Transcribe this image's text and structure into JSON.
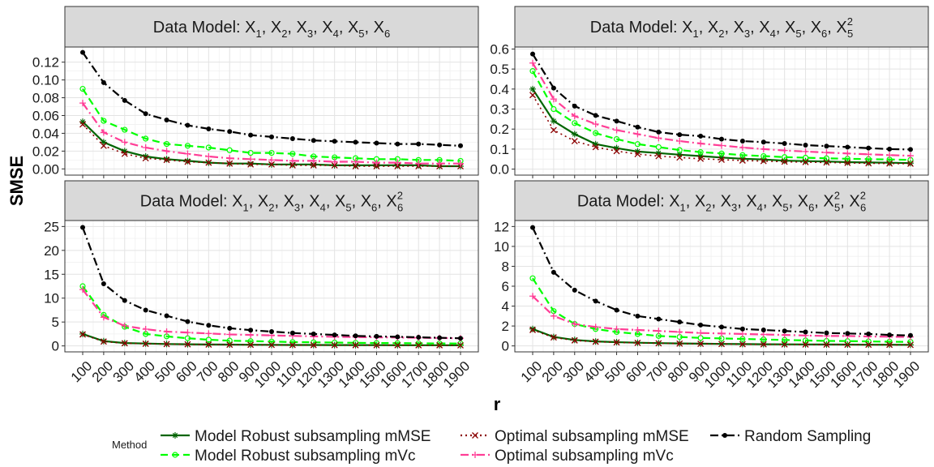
{
  "chart_data": {
    "type": "line",
    "xlabel": "r",
    "ylabel": "SMSE",
    "legend": {
      "title": "Method",
      "placement": "bottom",
      "entries": [
        {
          "name": "Model Robust subsampling mMSE",
          "color": "#006400",
          "line": "solid",
          "marker": "asterisk"
        },
        {
          "name": "Model Robust subsampling mVc",
          "color": "#00ff00",
          "line": "dashed",
          "marker": "open-circle"
        },
        {
          "name": "Optimal subsampling mMSE",
          "color": "#8b0000",
          "line": "dotted",
          "marker": "cross"
        },
        {
          "name": "Optimal subsampling mVc",
          "color": "#ff3e96",
          "line": "dashdot",
          "marker": "plus"
        },
        {
          "name": "Random Sampling",
          "color": "#000000",
          "line": "dashdot",
          "marker": "dot"
        }
      ]
    },
    "x": [
      100,
      200,
      300,
      400,
      500,
      600,
      700,
      800,
      900,
      1000,
      1100,
      1200,
      1300,
      1400,
      1500,
      1600,
      1700,
      1800,
      1900
    ],
    "grid": true,
    "panels": [
      {
        "title": {
          "prefix": "Data Model: ",
          "terms": [
            {
              "b": "X",
              "s": "1"
            },
            {
              "b": "X",
              "s": "2"
            },
            {
              "b": "X",
              "s": "3"
            },
            {
              "b": "X",
              "s": "4"
            },
            {
              "b": "X",
              "s": "5"
            },
            {
              "b": "X",
              "s": "6"
            }
          ]
        },
        "ylim": [
          -0.007,
          0.137
        ],
        "yticks": [
          0.0,
          0.02,
          0.04,
          0.06,
          0.08,
          0.1,
          0.12
        ],
        "ytick_labels": [
          "0.00",
          "0.02",
          "0.04",
          "0.06",
          "0.08",
          "0.10",
          "0.12"
        ],
        "series": [
          {
            "name": "Model Robust subsampling mMSE",
            "values": [
              0.053,
              0.03,
              0.02,
              0.014,
              0.011,
              0.009,
              0.007,
              0.006,
              0.006,
              0.005,
              0.005,
              0.005,
              0.004,
              0.004,
              0.004,
              0.004,
              0.004,
              0.003,
              0.003
            ]
          },
          {
            "name": "Model Robust subsampling mVc",
            "values": [
              0.09,
              0.054,
              0.044,
              0.034,
              0.028,
              0.026,
              0.024,
              0.021,
              0.018,
              0.018,
              0.017,
              0.014,
              0.013,
              0.012,
              0.011,
              0.011,
              0.01,
              0.01,
              0.009
            ]
          },
          {
            "name": "Optimal subsampling mMSE",
            "values": [
              0.05,
              0.026,
              0.017,
              0.012,
              0.01,
              0.008,
              0.007,
              0.006,
              0.005,
              0.005,
              0.004,
              0.004,
              0.004,
              0.003,
              0.003,
              0.003,
              0.003,
              0.003,
              0.003
            ]
          },
          {
            "name": "Optimal subsampling mVc",
            "values": [
              0.074,
              0.041,
              0.03,
              0.024,
              0.02,
              0.017,
              0.014,
              0.012,
              0.011,
              0.01,
              0.009,
              0.009,
              0.008,
              0.008,
              0.007,
              0.007,
              0.006,
              0.006,
              0.006
            ]
          },
          {
            "name": "Random Sampling",
            "values": [
              0.131,
              0.097,
              0.077,
              0.062,
              0.055,
              0.049,
              0.045,
              0.042,
              0.038,
              0.036,
              0.034,
              0.032,
              0.031,
              0.03,
              0.029,
              0.028,
              0.028,
              0.027,
              0.026
            ]
          }
        ]
      },
      {
        "title": {
          "prefix": "Data Model: ",
          "terms": [
            {
              "b": "X",
              "s": "1"
            },
            {
              "b": "X",
              "s": "2"
            },
            {
              "b": "X",
              "s": "3"
            },
            {
              "b": "X",
              "s": "4"
            },
            {
              "b": "X",
              "s": "5"
            },
            {
              "b": "X",
              "s": "6"
            },
            {
              "b": "X",
              "s": "5",
              "p": "2"
            }
          ]
        },
        "ylim": [
          -0.03,
          0.61
        ],
        "yticks": [
          0.0,
          0.1,
          0.2,
          0.3,
          0.4,
          0.5,
          0.6
        ],
        "ytick_labels": [
          "0.0",
          "0.1",
          "0.2",
          "0.3",
          "0.4",
          "0.5",
          "0.6"
        ],
        "series": [
          {
            "name": "Model Robust subsampling mMSE",
            "values": [
              0.4,
              0.24,
              0.175,
              0.125,
              0.105,
              0.088,
              0.08,
              0.072,
              0.065,
              0.058,
              0.052,
              0.048,
              0.042,
              0.04,
              0.038,
              0.035,
              0.033,
              0.032,
              0.03
            ]
          },
          {
            "name": "Model Robust subsampling mVc",
            "values": [
              0.49,
              0.3,
              0.23,
              0.18,
              0.15,
              0.125,
              0.11,
              0.095,
              0.085,
              0.078,
              0.07,
              0.065,
              0.06,
              0.057,
              0.054,
              0.052,
              0.05,
              0.048,
              0.046
            ]
          },
          {
            "name": "Optimal subsampling mMSE",
            "values": [
              0.37,
              0.195,
              0.14,
              0.11,
              0.09,
              0.075,
              0.065,
              0.058,
              0.052,
              0.047,
              0.043,
              0.04,
              0.037,
              0.035,
              0.033,
              0.031,
              0.029,
              0.028,
              0.027
            ]
          },
          {
            "name": "Optimal subsampling mVc",
            "values": [
              0.53,
              0.35,
              0.265,
              0.225,
              0.195,
              0.175,
              0.155,
              0.14,
              0.128,
              0.118,
              0.108,
              0.1,
              0.093,
              0.088,
              0.083,
              0.078,
              0.074,
              0.07,
              0.067
            ]
          },
          {
            "name": "Random Sampling",
            "values": [
              0.575,
              0.405,
              0.315,
              0.268,
              0.24,
              0.21,
              0.185,
              0.172,
              0.165,
              0.15,
              0.14,
              0.135,
              0.128,
              0.12,
              0.115,
              0.11,
              0.105,
              0.1,
              0.098
            ]
          }
        ]
      },
      {
        "title": {
          "prefix": "Data Model: ",
          "terms": [
            {
              "b": "X",
              "s": "1"
            },
            {
              "b": "X",
              "s": "2"
            },
            {
              "b": "X",
              "s": "3"
            },
            {
              "b": "X",
              "s": "4"
            },
            {
              "b": "X",
              "s": "5"
            },
            {
              "b": "X",
              "s": "6"
            },
            {
              "b": "X",
              "s": "6",
              "p": "2"
            }
          ]
        },
        "ylim": [
          -1.25,
          26.25
        ],
        "yticks": [
          0,
          5,
          10,
          15,
          20,
          25
        ],
        "ytick_labels": [
          "0",
          "5",
          "10",
          "15",
          "20",
          "25"
        ],
        "series": [
          {
            "name": "Model Robust subsampling mMSE",
            "values": [
              2.5,
              1.0,
              0.6,
              0.5,
              0.4,
              0.35,
              0.3,
              0.28,
              0.25,
              0.22,
              0.2,
              0.19,
              0.18,
              0.17,
              0.16,
              0.15,
              0.15,
              0.14,
              0.13
            ]
          },
          {
            "name": "Model Robust subsampling mVc",
            "values": [
              12.5,
              6.5,
              4.0,
              2.5,
              2.0,
              1.6,
              1.3,
              1.1,
              1.0,
              0.9,
              0.8,
              0.75,
              0.7,
              0.65,
              0.6,
              0.58,
              0.55,
              0.52,
              0.5
            ]
          },
          {
            "name": "Optimal subsampling mMSE",
            "values": [
              2.4,
              0.9,
              0.55,
              0.45,
              0.38,
              0.33,
              0.28,
              0.25,
              0.22,
              0.2,
              0.18,
              0.17,
              0.16,
              0.15,
              0.14,
              0.14,
              0.13,
              0.13,
              0.12
            ]
          },
          {
            "name": "Optimal subsampling mVc",
            "values": [
              11.8,
              6.0,
              4.2,
              3.5,
              3.0,
              2.8,
              2.6,
              2.4,
              2.3,
              2.2,
              2.1,
              2.0,
              1.9,
              1.85,
              1.8,
              1.75,
              1.7,
              1.65,
              1.6
            ]
          },
          {
            "name": "Random Sampling",
            "values": [
              24.8,
              13.0,
              9.5,
              7.5,
              6.3,
              5.1,
              4.3,
              3.7,
              3.3,
              3.0,
              2.7,
              2.5,
              2.3,
              2.1,
              2.0,
              1.9,
              1.8,
              1.7,
              1.6
            ]
          }
        ]
      },
      {
        "title": {
          "prefix": "Data Model: ",
          "terms": [
            {
              "b": "X",
              "s": "1"
            },
            {
              "b": "X",
              "s": "2"
            },
            {
              "b": "X",
              "s": "3"
            },
            {
              "b": "X",
              "s": "4"
            },
            {
              "b": "X",
              "s": "5"
            },
            {
              "b": "X",
              "s": "6"
            },
            {
              "b": "X",
              "s": "5",
              "p": "2"
            },
            {
              "b": "X",
              "s": "6",
              "p": "2"
            }
          ]
        },
        "ylim": [
          -0.6,
          12.6
        ],
        "yticks": [
          0,
          2,
          4,
          6,
          8,
          10,
          12
        ],
        "ytick_labels": [
          "0",
          "2",
          "4",
          "6",
          "8",
          "10",
          "12"
        ],
        "series": [
          {
            "name": "Model Robust subsampling mMSE",
            "values": [
              1.7,
              0.9,
              0.6,
              0.45,
              0.38,
              0.32,
              0.28,
              0.25,
              0.22,
              0.2,
              0.18,
              0.17,
              0.16,
              0.15,
              0.14,
              0.13,
              0.12,
              0.12,
              0.11
            ]
          },
          {
            "name": "Model Robust subsampling mVc",
            "values": [
              6.8,
              3.5,
              2.2,
              1.7,
              1.4,
              1.2,
              1.0,
              0.9,
              0.8,
              0.75,
              0.7,
              0.65,
              0.6,
              0.55,
              0.5,
              0.48,
              0.45,
              0.42,
              0.4
            ]
          },
          {
            "name": "Optimal subsampling mMSE",
            "values": [
              1.6,
              0.85,
              0.55,
              0.42,
              0.35,
              0.3,
              0.26,
              0.23,
              0.21,
              0.19,
              0.17,
              0.16,
              0.15,
              0.14,
              0.13,
              0.12,
              0.12,
              0.11,
              0.1
            ]
          },
          {
            "name": "Optimal subsampling mVc",
            "values": [
              5.0,
              3.0,
              2.2,
              1.9,
              1.7,
              1.6,
              1.5,
              1.4,
              1.3,
              1.25,
              1.2,
              1.15,
              1.1,
              1.05,
              1.0,
              1.0,
              0.95,
              0.92,
              0.9
            ]
          },
          {
            "name": "Random Sampling",
            "values": [
              11.9,
              7.4,
              5.6,
              4.5,
              3.6,
              3.0,
              2.7,
              2.4,
              2.1,
              1.9,
              1.7,
              1.6,
              1.5,
              1.4,
              1.3,
              1.25,
              1.2,
              1.1,
              1.05
            ]
          }
        ]
      }
    ]
  }
}
